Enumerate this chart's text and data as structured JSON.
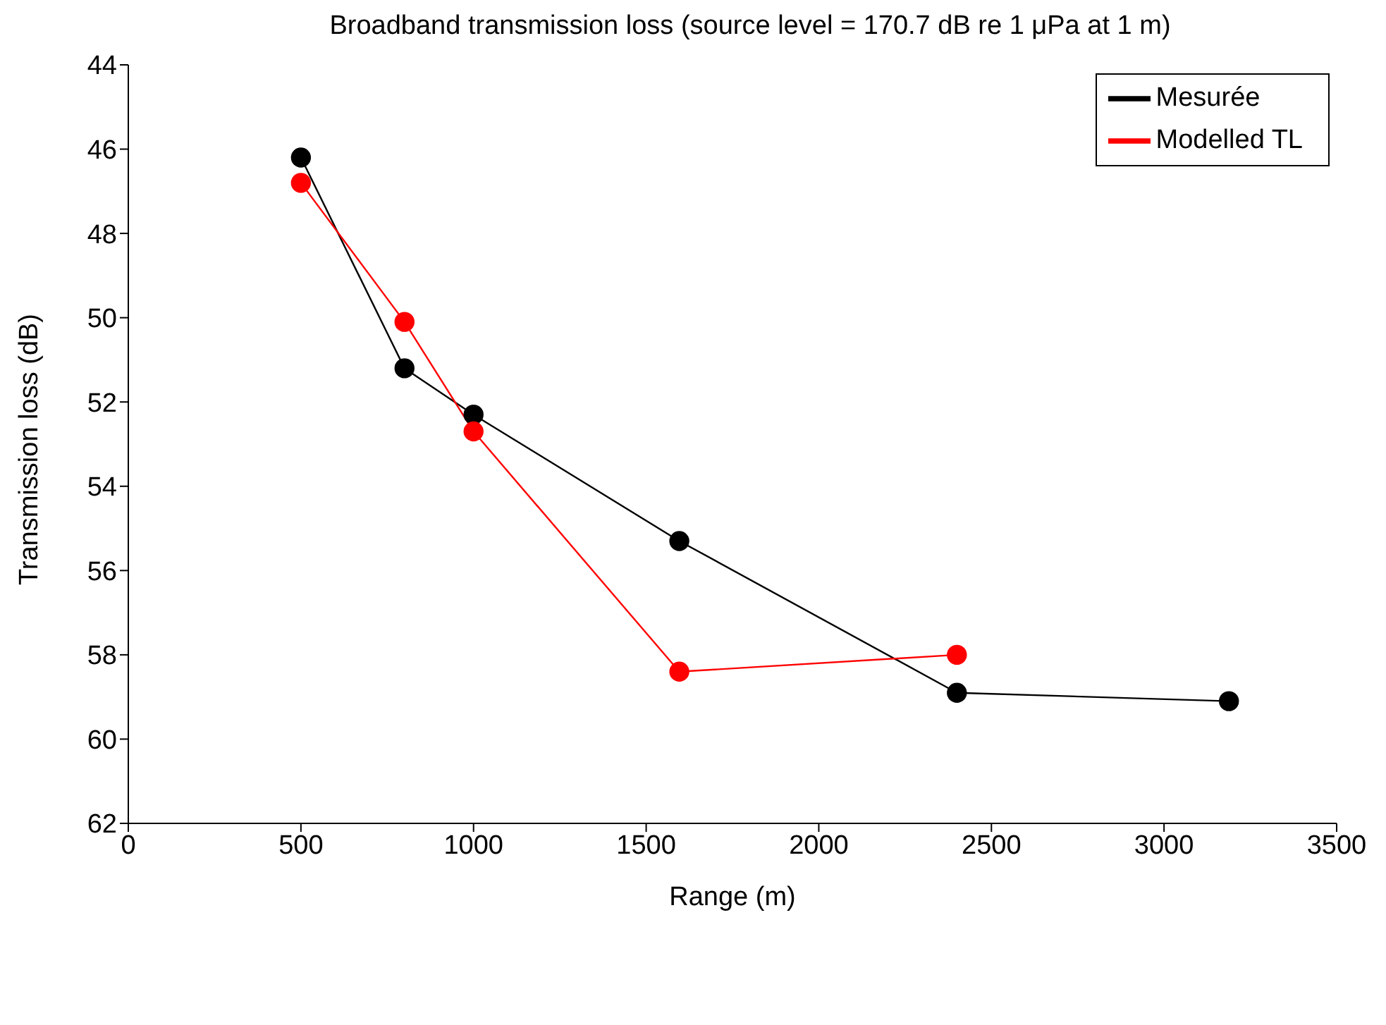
{
  "chart_data": {
    "type": "line",
    "title": "Broadband transmission loss (source level = 170.7 dB re 1 μPa at 1 m)",
    "xlabel": "Range (m)",
    "ylabel": "Transmission loss (dB)",
    "x": [
      500,
      800,
      1000,
      1596,
      2400,
      3188
    ],
    "series": [
      {
        "name": "Mesurée",
        "color": "#000000",
        "values": [
          46.2,
          51.2,
          52.3,
          55.3,
          58.9,
          59.1
        ]
      },
      {
        "name": "Modelled TL",
        "color": "#ff0000",
        "values": [
          46.8,
          50.1,
          52.7,
          58.4,
          58.0,
          null
        ]
      }
    ],
    "xlim": [
      0,
      3500
    ],
    "xticks": [
      0,
      500,
      1000,
      1500,
      2000,
      2500,
      3000,
      3500
    ],
    "ylim": [
      62,
      44
    ],
    "yticks": [
      44,
      46,
      48,
      50,
      52,
      54,
      56,
      58,
      60,
      62
    ],
    "legend": "top right",
    "marker": "circle",
    "line_style": "solid"
  }
}
